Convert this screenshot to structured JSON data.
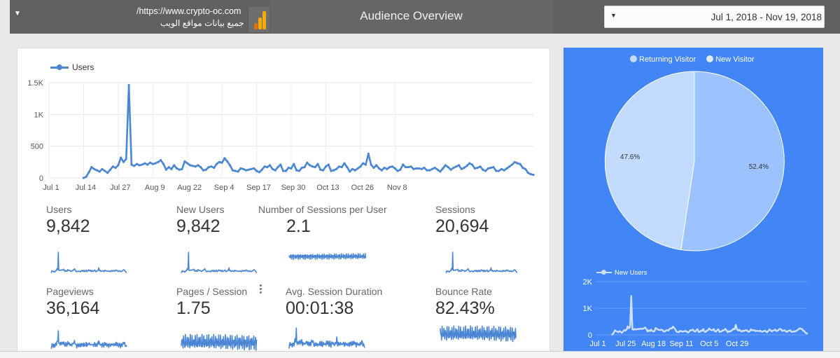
{
  "header": {
    "menu_icon": "caret-down-icon",
    "brand_url": "https://www.crypto-oc.com/",
    "brand_subtitle": "جميع بيانات مواقع الويب",
    "logo_icon": "analytics-logo-icon",
    "page_title": "Audience Overview",
    "date_range": "Jul 1, 2018 - Nov 19, 2018",
    "date_caret_icon": "caret-down-icon"
  },
  "colors": {
    "line": "#4a86d4",
    "panel_blue": "#4285f4",
    "returning": "#c2dbff",
    "new_visitor": "#9cc3ff",
    "new_users_line": "#cfe0fb"
  },
  "metrics": [
    {
      "label": "Users",
      "value": "9,842"
    },
    {
      "label": "New Users",
      "value": "9,842"
    },
    {
      "label": "Number of Sessions per User",
      "value": "2.1"
    },
    {
      "label": "Sessions",
      "value": "20,694"
    },
    {
      "label": "Pageviews",
      "value": "36,164"
    },
    {
      "label": "Pages / Session",
      "value": "1.75"
    },
    {
      "label": "Avg. Session Duration",
      "value": "00:01:38"
    },
    {
      "label": "Bounce Rate",
      "value": "82.43%"
    }
  ],
  "chart_data": [
    {
      "type": "line",
      "title": "",
      "legend": [
        "Users"
      ],
      "x_tick_labels": [
        "Jul 1",
        "Jul 14",
        "Jul 27",
        "Aug 9",
        "Aug 22",
        "Sep 4",
        "Sep 17",
        "Sep 30",
        "Oct 13",
        "Oct 26",
        "Nov 8"
      ],
      "y_tick_labels": [
        "0",
        "500",
        "1K",
        "1.5K"
      ],
      "ylim": [
        0,
        1500
      ],
      "series": [
        {
          "name": "Users",
          "values": [
            0,
            0,
            0,
            0,
            0,
            0,
            0,
            0,
            0,
            0,
            0,
            0,
            0,
            0,
            20,
            90,
            170,
            140,
            120,
            100,
            140,
            110,
            80,
            130,
            180,
            160,
            200,
            320,
            250,
            300,
            1460,
            210,
            190,
            220,
            200,
            210,
            230,
            210,
            240,
            220,
            230,
            250,
            280,
            220,
            130,
            170,
            140,
            200,
            150,
            130,
            140,
            260,
            230,
            200,
            190,
            180,
            200,
            170,
            120,
            130,
            170,
            180,
            160,
            220,
            250,
            240,
            310,
            260,
            200,
            120,
            110,
            100,
            150,
            140,
            120,
            130,
            140,
            150,
            110,
            90,
            130,
            180,
            170,
            200,
            140,
            120,
            170,
            210,
            110,
            110,
            160,
            150,
            220,
            120,
            110,
            160,
            170,
            240,
            200,
            180,
            170,
            220,
            130,
            120,
            180,
            210,
            110,
            120,
            140,
            180,
            170,
            230,
            170,
            100,
            140,
            120,
            150,
            180,
            230,
            210,
            380,
            210,
            160,
            200,
            150,
            120,
            160,
            140,
            170,
            180,
            150,
            110,
            130,
            210,
            170,
            170,
            180,
            140,
            150,
            150,
            140,
            160,
            120,
            120,
            140,
            160,
            130,
            100,
            150,
            200,
            170,
            130,
            160,
            180,
            200,
            140,
            160,
            190,
            230,
            210,
            150,
            160,
            180,
            130,
            110,
            150,
            160,
            170,
            110,
            110,
            140,
            120,
            150,
            180,
            210,
            250,
            230,
            220,
            160,
            140,
            80,
            60,
            50
          ]
        }
      ]
    },
    {
      "type": "pie",
      "legend": [
        "Returning Visitor",
        "New Visitor"
      ],
      "slices": [
        {
          "label": "Returning Visitor",
          "value": 47.6,
          "text": "47.6%"
        },
        {
          "label": "New Visitor",
          "value": 52.4,
          "text": "52.4%"
        }
      ]
    },
    {
      "type": "line",
      "legend": [
        "New Users"
      ],
      "x_tick_labels": [
        "Jul 1",
        "Jul 25",
        "Aug 18",
        "Sep 11",
        "Oct 5",
        "Oct 29"
      ],
      "y_tick_labels": [
        "0",
        "1K",
        "2K"
      ],
      "ylim": [
        0,
        2000
      ],
      "series": [
        {
          "name": "New Users",
          "values": [
            0,
            0,
            0,
            0,
            0,
            0,
            0,
            0,
            0,
            0,
            0,
            0,
            0,
            0,
            20,
            90,
            170,
            140,
            120,
            100,
            140,
            110,
            80,
            130,
            180,
            160,
            200,
            320,
            250,
            300,
            1460,
            210,
            190,
            220,
            200,
            210,
            230,
            210,
            240,
            220,
            230,
            250,
            280,
            220,
            130,
            170,
            140,
            200,
            150,
            130,
            140,
            260,
            230,
            200,
            190,
            180,
            200,
            170,
            120,
            130,
            170,
            180,
            160,
            220,
            250,
            240,
            310,
            260,
            200,
            120,
            110,
            100,
            150,
            140,
            120,
            130,
            140,
            150,
            110,
            90,
            130,
            180,
            170,
            200,
            140,
            120,
            170,
            210,
            110,
            110,
            160,
            150,
            220,
            120,
            110,
            160,
            170,
            240,
            200,
            180,
            170,
            220,
            130,
            120,
            180,
            210,
            110,
            120,
            140,
            180,
            170,
            230,
            170,
            100,
            140,
            120,
            150,
            180,
            230,
            210,
            380,
            210,
            160,
            200,
            150,
            120,
            160,
            140,
            170,
            180,
            150,
            110,
            130,
            210,
            170,
            170,
            180,
            140,
            150,
            150,
            140,
            160,
            120,
            120,
            140,
            160,
            130,
            100,
            150,
            200,
            170,
            130,
            160,
            180,
            200,
            140,
            160,
            190,
            230,
            210,
            150,
            160,
            180,
            130,
            110,
            150,
            160,
            170,
            110,
            110,
            140,
            120,
            150,
            180,
            210,
            250,
            230,
            220,
            160,
            140,
            80,
            60,
            50
          ]
        }
      ]
    }
  ]
}
